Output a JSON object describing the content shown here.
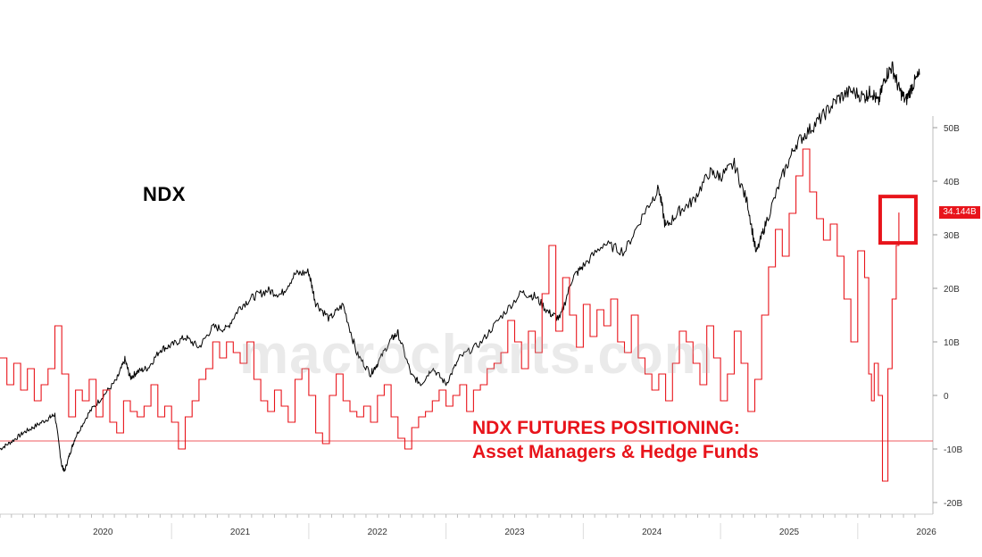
{
  "chart_data": {
    "type": "line",
    "title": "",
    "x_tick_labels": [
      "2020",
      "2021",
      "2022",
      "2023",
      "2024",
      "2025",
      "2026"
    ],
    "xlim": [
      2019.75,
      2026.45
    ],
    "right_axis": {
      "tick_labels": [
        "50B",
        "40B",
        "30B",
        "20B",
        "10B",
        "0",
        "-10B",
        "-20B"
      ],
      "tick_values": [
        50,
        40,
        30,
        20,
        10,
        0,
        -10,
        -20
      ],
      "ylim": [
        -21,
        51
      ],
      "unit": "B"
    },
    "reference_line": {
      "value": -8.5,
      "color": "#e8141b"
    },
    "last_value_badge": "34.144B",
    "grid": false,
    "series": [
      {
        "name": "NDX",
        "axis": "left-unlabeled",
        "color": "#000000",
        "points": [
          [
            2019.75,
            7800
          ],
          [
            2019.83,
            8150
          ],
          [
            2019.92,
            8600
          ],
          [
            2020.0,
            8900
          ],
          [
            2020.1,
            9300
          ],
          [
            2020.15,
            9500
          ],
          [
            2020.2,
            7000
          ],
          [
            2020.22,
            6700
          ],
          [
            2020.26,
            7600
          ],
          [
            2020.3,
            8400
          ],
          [
            2020.4,
            9600
          ],
          [
            2020.5,
            10400
          ],
          [
            2020.6,
            11200
          ],
          [
            2020.66,
            12200
          ],
          [
            2020.7,
            11300
          ],
          [
            2020.75,
            11600
          ],
          [
            2020.83,
            11800
          ],
          [
            2020.92,
            12700
          ],
          [
            2021.0,
            12900
          ],
          [
            2021.1,
            13300
          ],
          [
            2021.2,
            12800
          ],
          [
            2021.3,
            13800
          ],
          [
            2021.4,
            13700
          ],
          [
            2021.5,
            14800
          ],
          [
            2021.6,
            15300
          ],
          [
            2021.7,
            15600
          ],
          [
            2021.8,
            15400
          ],
          [
            2021.9,
            16400
          ],
          [
            2022.0,
            16500
          ],
          [
            2022.05,
            15000
          ],
          [
            2022.15,
            14200
          ],
          [
            2022.25,
            14900
          ],
          [
            2022.35,
            12500
          ],
          [
            2022.45,
            11500
          ],
          [
            2022.5,
            12000
          ],
          [
            2022.6,
            13200
          ],
          [
            2022.65,
            13500
          ],
          [
            2022.75,
            11400
          ],
          [
            2022.82,
            11000
          ],
          [
            2022.9,
            11800
          ],
          [
            2023.0,
            11000
          ],
          [
            2023.1,
            12300
          ],
          [
            2023.25,
            13000
          ],
          [
            2023.4,
            14300
          ],
          [
            2023.55,
            15500
          ],
          [
            2023.65,
            15300
          ],
          [
            2023.75,
            14500
          ],
          [
            2023.83,
            14200
          ],
          [
            2023.92,
            16200
          ],
          [
            2024.0,
            16800
          ],
          [
            2024.15,
            17900
          ],
          [
            2024.3,
            17500
          ],
          [
            2024.45,
            19500
          ],
          [
            2024.55,
            20600
          ],
          [
            2024.6,
            18700
          ],
          [
            2024.7,
            19500
          ],
          [
            2024.8,
            20000
          ],
          [
            2024.92,
            21400
          ],
          [
            2025.0,
            21200
          ],
          [
            2025.1,
            21800
          ],
          [
            2025.2,
            19800
          ],
          [
            2025.26,
            17400
          ],
          [
            2025.33,
            18900
          ],
          [
            2025.45,
            21200
          ],
          [
            2025.55,
            22800
          ],
          [
            2025.65,
            23500
          ],
          [
            2025.75,
            24200
          ],
          [
            2025.85,
            25000
          ],
          [
            2025.95,
            25400
          ],
          [
            2026.05,
            25100
          ],
          [
            2026.1,
            25400
          ],
          [
            2026.15,
            24800
          ],
          [
            2026.2,
            26100
          ],
          [
            2026.25,
            26600
          ],
          [
            2026.3,
            25500
          ],
          [
            2026.35,
            24900
          ],
          [
            2026.4,
            25700
          ],
          [
            2026.45,
            26200
          ]
        ],
        "scale": {
          "min": 6400,
          "max": 27900
        }
      },
      {
        "name": "NDX FUTURES POSITIONING",
        "axis": "right",
        "unit": "B",
        "color": "#e8141b",
        "points": [
          [
            2019.75,
            7
          ],
          [
            2019.8,
            2
          ],
          [
            2019.85,
            6
          ],
          [
            2019.9,
            1
          ],
          [
            2019.95,
            5
          ],
          [
            2020.0,
            -1
          ],
          [
            2020.05,
            2
          ],
          [
            2020.1,
            5
          ],
          [
            2020.15,
            13
          ],
          [
            2020.2,
            4
          ],
          [
            2020.25,
            -4
          ],
          [
            2020.3,
            1
          ],
          [
            2020.35,
            -1
          ],
          [
            2020.4,
            3
          ],
          [
            2020.45,
            -4
          ],
          [
            2020.5,
            1
          ],
          [
            2020.55,
            -5
          ],
          [
            2020.6,
            -7
          ],
          [
            2020.65,
            -1
          ],
          [
            2020.7,
            -3
          ],
          [
            2020.75,
            -4
          ],
          [
            2020.8,
            -2
          ],
          [
            2020.85,
            2
          ],
          [
            2020.9,
            -4
          ],
          [
            2020.95,
            -2
          ],
          [
            2021.0,
            -5
          ],
          [
            2021.05,
            -10
          ],
          [
            2021.1,
            -4
          ],
          [
            2021.15,
            -1
          ],
          [
            2021.2,
            3
          ],
          [
            2021.25,
            5
          ],
          [
            2021.3,
            10
          ],
          [
            2021.35,
            7
          ],
          [
            2021.4,
            10
          ],
          [
            2021.45,
            8
          ],
          [
            2021.5,
            6
          ],
          [
            2021.55,
            10
          ],
          [
            2021.6,
            3
          ],
          [
            2021.65,
            -1
          ],
          [
            2021.7,
            -3
          ],
          [
            2021.75,
            1
          ],
          [
            2021.8,
            -2
          ],
          [
            2021.85,
            -5
          ],
          [
            2021.9,
            3
          ],
          [
            2021.95,
            5
          ],
          [
            2022.0,
            0
          ],
          [
            2022.05,
            -7
          ],
          [
            2022.1,
            -9
          ],
          [
            2022.15,
            0
          ],
          [
            2022.2,
            4
          ],
          [
            2022.25,
            -1
          ],
          [
            2022.3,
            -3
          ],
          [
            2022.35,
            -4
          ],
          [
            2022.4,
            -2
          ],
          [
            2022.45,
            -5
          ],
          [
            2022.5,
            0
          ],
          [
            2022.55,
            2
          ],
          [
            2022.6,
            -4
          ],
          [
            2022.65,
            -8
          ],
          [
            2022.7,
            -10
          ],
          [
            2022.75,
            -6
          ],
          [
            2022.8,
            -4
          ],
          [
            2022.85,
            -3
          ],
          [
            2022.9,
            -1
          ],
          [
            2022.95,
            1
          ],
          [
            2023.0,
            -2
          ],
          [
            2023.05,
            0
          ],
          [
            2023.1,
            2
          ],
          [
            2023.15,
            -3
          ],
          [
            2023.2,
            1
          ],
          [
            2023.25,
            2
          ],
          [
            2023.3,
            5
          ],
          [
            2023.35,
            6
          ],
          [
            2023.4,
            8
          ],
          [
            2023.45,
            14
          ],
          [
            2023.5,
            10
          ],
          [
            2023.55,
            5
          ],
          [
            2023.6,
            12
          ],
          [
            2023.65,
            8
          ],
          [
            2023.7,
            19
          ],
          [
            2023.75,
            28
          ],
          [
            2023.8,
            12
          ],
          [
            2023.85,
            22
          ],
          [
            2023.9,
            15
          ],
          [
            2023.95,
            9
          ],
          [
            2024.0,
            17
          ],
          [
            2024.05,
            11
          ],
          [
            2024.1,
            16
          ],
          [
            2024.15,
            13
          ],
          [
            2024.2,
            18
          ],
          [
            2024.25,
            10
          ],
          [
            2024.3,
            8
          ],
          [
            2024.35,
            15
          ],
          [
            2024.4,
            7
          ],
          [
            2024.45,
            4
          ],
          [
            2024.5,
            1
          ],
          [
            2024.55,
            4
          ],
          [
            2024.6,
            -1
          ],
          [
            2024.65,
            6
          ],
          [
            2024.7,
            12
          ],
          [
            2024.75,
            10
          ],
          [
            2024.8,
            6
          ],
          [
            2024.85,
            2
          ],
          [
            2024.9,
            13
          ],
          [
            2024.95,
            7
          ],
          [
            2025.0,
            -1
          ],
          [
            2025.05,
            4
          ],
          [
            2025.1,
            12
          ],
          [
            2025.15,
            6
          ],
          [
            2025.2,
            -3
          ],
          [
            2025.25,
            3
          ],
          [
            2025.3,
            15
          ],
          [
            2025.35,
            24
          ],
          [
            2025.4,
            31
          ],
          [
            2025.45,
            26
          ],
          [
            2025.5,
            34
          ],
          [
            2025.55,
            41
          ],
          [
            2025.6,
            46
          ],
          [
            2025.65,
            38
          ],
          [
            2025.7,
            33
          ],
          [
            2025.75,
            29
          ],
          [
            2025.8,
            32
          ],
          [
            2025.85,
            26
          ],
          [
            2025.9,
            18
          ],
          [
            2025.95,
            10
          ],
          [
            2026.0,
            27
          ],
          [
            2026.05,
            22
          ],
          [
            2026.08,
            4
          ],
          [
            2026.1,
            -1
          ],
          [
            2026.12,
            6
          ],
          [
            2026.15,
            0
          ],
          [
            2026.18,
            -16
          ],
          [
            2026.22,
            5
          ],
          [
            2026.25,
            18
          ],
          [
            2026.28,
            28
          ],
          [
            2026.3,
            34.144
          ]
        ]
      }
    ],
    "annotations": [
      {
        "text": "NDX",
        "color": "#000000"
      },
      {
        "lines": [
          "NDX FUTURES POSITIONING:",
          "Asset Managers & Hedge Funds"
        ],
        "color": "#e8141b"
      }
    ],
    "highlight_box": {
      "color": "#e8141b",
      "around": "latest positioning value"
    }
  },
  "watermark": "macrocharts.com",
  "labels": {
    "ndx": "NDX",
    "positioning_line1": "NDX FUTURES POSITIONING:",
    "positioning_line2": "Asset Managers & Hedge Funds"
  }
}
